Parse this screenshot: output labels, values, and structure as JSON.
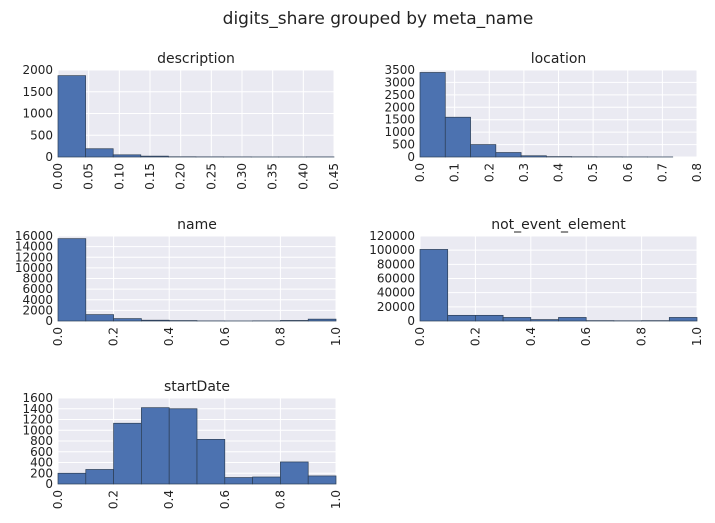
{
  "title": "digits_share grouped by meta_name",
  "chart_data": [
    {
      "type": "histogram",
      "title": "description",
      "color": "#4c72b0",
      "grid": true,
      "bins": [
        0,
        0.045,
        0.09,
        0.135,
        0.18,
        0.225,
        0.27,
        0.315,
        0.36,
        0.405,
        0.45
      ],
      "counts": [
        1870,
        190,
        50,
        20,
        5,
        3,
        2,
        1,
        1,
        2
      ],
      "xlim": [
        0,
        0.45
      ],
      "xticks": [
        {
          "value": 0,
          "label": "0.00"
        },
        {
          "value": 0.05,
          "label": "0.05"
        },
        {
          "value": 0.1,
          "label": "0.10"
        },
        {
          "value": 0.15,
          "label": "0.15"
        },
        {
          "value": 0.2,
          "label": "0.20"
        },
        {
          "value": 0.25,
          "label": "0.25"
        },
        {
          "value": 0.3,
          "label": "0.30"
        },
        {
          "value": 0.35,
          "label": "0.35"
        },
        {
          "value": 0.4,
          "label": "0.40"
        },
        {
          "value": 0.45,
          "label": "0.45"
        }
      ],
      "ylim": [
        0,
        2000
      ],
      "yticks": [
        0,
        500,
        1000,
        1500,
        2000
      ]
    },
    {
      "type": "histogram",
      "title": "location",
      "color": "#4c72b0",
      "grid": true,
      "bins": [
        0,
        0.073,
        0.146,
        0.219,
        0.292,
        0.365,
        0.438,
        0.511,
        0.584,
        0.657,
        0.73
      ],
      "counts": [
        3400,
        1600,
        500,
        180,
        50,
        15,
        8,
        5,
        3,
        2
      ],
      "xlim": [
        0,
        0.8
      ],
      "xticks": [
        {
          "value": 0,
          "label": "0.0"
        },
        0.1,
        0.2,
        0.3,
        0.4,
        0.5,
        0.6,
        0.7,
        0.8
      ],
      "ylim": [
        0,
        3500
      ],
      "yticks": [
        0,
        500,
        1000,
        1500,
        2000,
        2500,
        3000,
        3500
      ]
    },
    {
      "type": "histogram",
      "title": "name",
      "color": "#4c72b0",
      "grid": true,
      "bins": [
        0,
        0.1,
        0.2,
        0.3,
        0.4,
        0.5,
        0.6,
        0.7,
        0.8,
        0.9,
        1
      ],
      "counts": [
        15500,
        1200,
        450,
        150,
        80,
        20,
        10,
        30,
        100,
        350
      ],
      "xlim": [
        0,
        1
      ],
      "xticks": [
        {
          "value": 0,
          "label": "0.0"
        },
        0.2,
        0.4,
        0.6,
        0.8,
        {
          "value": 1,
          "label": "1.0"
        }
      ],
      "ylim": [
        0,
        16000
      ],
      "yticks": [
        0,
        2000,
        4000,
        6000,
        8000,
        10000,
        12000,
        14000,
        16000
      ]
    },
    {
      "type": "histogram",
      "title": "not_event_element",
      "color": "#4c72b0",
      "grid": true,
      "bins": [
        0,
        0.1,
        0.2,
        0.3,
        0.4,
        0.5,
        0.6,
        0.7,
        0.8,
        0.9,
        1
      ],
      "counts": [
        101000,
        8000,
        8000,
        5000,
        2000,
        5000,
        500,
        300,
        500,
        5000
      ],
      "xlim": [
        0,
        1
      ],
      "xticks": [
        {
          "value": 0,
          "label": "0.0"
        },
        0.2,
        0.4,
        0.6,
        0.8,
        {
          "value": 1,
          "label": "1.0"
        }
      ],
      "ylim": [
        0,
        120000
      ],
      "yticks": [
        0,
        20000,
        40000,
        60000,
        80000,
        100000,
        120000
      ]
    },
    {
      "type": "histogram",
      "title": "startDate",
      "color": "#4c72b0",
      "grid": true,
      "bins": [
        0,
        0.1,
        0.2,
        0.3,
        0.4,
        0.5,
        0.6,
        0.7,
        0.8,
        0.9,
        1
      ],
      "counts": [
        200,
        270,
        1130,
        1420,
        1400,
        830,
        120,
        130,
        410,
        150
      ],
      "xlim": [
        0,
        1
      ],
      "xticks": [
        {
          "value": 0,
          "label": "0.0"
        },
        0.2,
        0.4,
        0.6,
        0.8,
        {
          "value": 1,
          "label": "1.0"
        }
      ],
      "ylim": [
        0,
        1600
      ],
      "yticks": [
        0,
        200,
        400,
        600,
        800,
        1000,
        1200,
        1400,
        1600
      ]
    }
  ]
}
